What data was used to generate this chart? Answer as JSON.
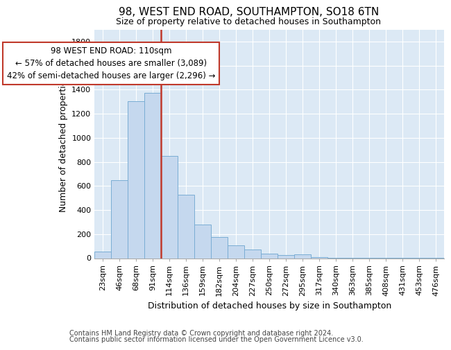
{
  "title": "98, WEST END ROAD, SOUTHAMPTON, SO18 6TN",
  "subtitle": "Size of property relative to detached houses in Southampton",
  "xlabel": "Distribution of detached houses by size in Southampton",
  "ylabel": "Number of detached properties",
  "annotation_line1": "98 WEST END ROAD: 110sqm",
  "annotation_line2": "← 57% of detached houses are smaller (3,089)",
  "annotation_line3": "42% of semi-detached houses are larger (2,296) →",
  "bar_color": "#c5d8ee",
  "bar_edge_color": "#7aadd4",
  "marker_color": "#c0392b",
  "background_color": "#dce9f5",
  "grid_color": "#ffffff",
  "categories": [
    "23sqm",
    "46sqm",
    "68sqm",
    "91sqm",
    "114sqm",
    "136sqm",
    "159sqm",
    "182sqm",
    "204sqm",
    "227sqm",
    "250sqm",
    "272sqm",
    "295sqm",
    "317sqm",
    "340sqm",
    "363sqm",
    "385sqm",
    "408sqm",
    "431sqm",
    "453sqm",
    "476sqm"
  ],
  "values": [
    55,
    645,
    1305,
    1375,
    850,
    525,
    280,
    175,
    105,
    70,
    35,
    25,
    30,
    10,
    5,
    5,
    5,
    5,
    5,
    5,
    5
  ],
  "ylim": [
    0,
    1900
  ],
  "yticks": [
    0,
    200,
    400,
    600,
    800,
    1000,
    1200,
    1400,
    1600,
    1800
  ],
  "marker_bar_index": 4,
  "footer1": "Contains HM Land Registry data © Crown copyright and database right 2024.",
  "footer2": "Contains public sector information licensed under the Open Government Licence v3.0.",
  "title_fontsize": 11,
  "subtitle_fontsize": 9,
  "axis_label_fontsize": 9,
  "tick_fontsize": 8,
  "annotation_fontsize": 8.5,
  "footer_fontsize": 7
}
